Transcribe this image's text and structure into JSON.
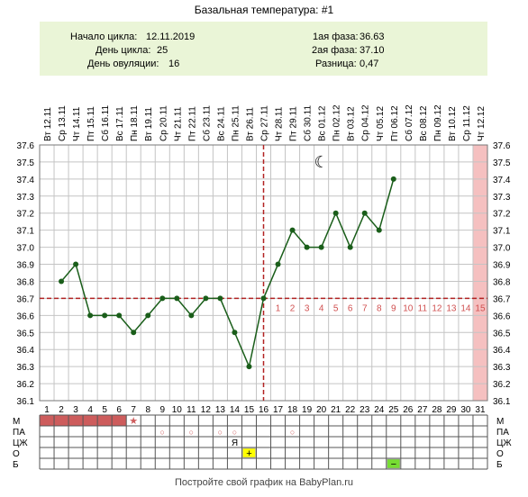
{
  "title": "Базальная температура: #1",
  "info": {
    "left": [
      {
        "label": "Начало цикла:",
        "value": "12.11.2019"
      },
      {
        "label": "День цикла:",
        "value": "25"
      },
      {
        "label": "День овуляции:",
        "value": "16"
      }
    ],
    "right": [
      {
        "label": "1ая фаза:",
        "value": "36.63"
      },
      {
        "label": "2ая фаза:",
        "value": "37.10"
      },
      {
        "label": "Разница:",
        "value": "0,47"
      }
    ]
  },
  "chart_data": {
    "type": "line",
    "days": [
      1,
      2,
      3,
      4,
      5,
      6,
      7,
      8,
      9,
      10,
      11,
      12,
      13,
      14,
      15,
      16,
      17,
      18,
      19,
      20,
      21,
      22,
      23,
      24,
      25,
      26,
      27,
      28,
      29,
      30,
      31
    ],
    "dates": [
      "Вт 12.11",
      "Ср 13.11",
      "Чт 14.11",
      "Пт 15.11",
      "Сб 16.11",
      "Вс 17.11",
      "Пн 18.11",
      "Вт 19.11",
      "Ср 20.11",
      "Чт 21.11",
      "Пт 22.11",
      "Сб 23.11",
      "Вс 24.11",
      "Пн 25.11",
      "Вт 26.11",
      "Ср 27.11",
      "Чт 28.11",
      "Пт 29.11",
      "Сб 30.11",
      "Вс 01.12",
      "Пн 02.12",
      "Вт 03.12",
      "Ср 04.12",
      "Чт 05.12",
      "Пт 06.12",
      "Сб 07.12",
      "Вс 08.12",
      "Пн 09.12",
      "Вт 10.12",
      "Ср 11.12",
      "Чт 12.12"
    ],
    "temperatures": [
      null,
      36.8,
      36.9,
      36.6,
      36.6,
      36.6,
      36.5,
      36.6,
      36.7,
      36.7,
      36.6,
      36.7,
      36.7,
      36.5,
      36.3,
      36.7,
      36.9,
      37.1,
      37.0,
      37.0,
      37.2,
      37.0,
      37.2,
      37.1,
      37.4,
      null,
      null,
      null,
      null,
      null,
      null
    ],
    "coverline": 36.7,
    "ovulation_day": 16,
    "ylim": [
      36.1,
      37.6
    ],
    "yticks": [
      "37.6",
      "37.5",
      "37.4",
      "37.3",
      "37.2",
      "37.1",
      "37.0",
      "36.9",
      "36.8",
      "36.7",
      "36.6",
      "36.5",
      "36.4",
      "36.3",
      "36.2",
      "36.1"
    ],
    "luteal_day_numbers": [
      "1",
      "2",
      "3",
      "4",
      "5",
      "6",
      "7",
      "8",
      "9",
      "10",
      "11",
      "12",
      "13",
      "14",
      "15"
    ],
    "highlight_day": 31,
    "moon_day": 20,
    "moon_symbol": "☾",
    "colors": {
      "line": "#1a5e1a",
      "coverline": "#b22222",
      "luteal": "#d05050",
      "highlight": "#f5c0c0",
      "grid": "#c4c4c4"
    }
  },
  "rows": {
    "labels": [
      "М",
      "ПА",
      "ЦЖ",
      "О",
      "Б"
    ],
    "menstruation_days": [
      1,
      2,
      3,
      4,
      5,
      6
    ],
    "star_day": 7,
    "star_symbol": "★",
    "pa_days": [
      9,
      11,
      13,
      14,
      18
    ],
    "pa_symbol": "○",
    "cz_day": 14,
    "cz_symbol": "Я",
    "o_day": 15,
    "o_symbol": "+",
    "b_day": 25,
    "b_symbol": "−"
  },
  "footer": "Постройте свой график на BabyPlan.ru"
}
